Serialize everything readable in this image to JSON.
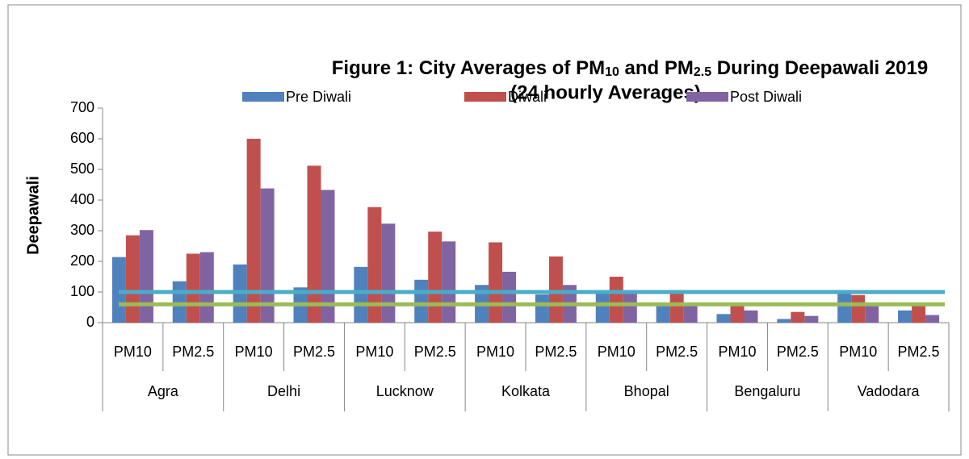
{
  "chart_data": {
    "type": "bar",
    "title_parts": [
      "Figure 1: City Averages of PM",
      "10",
      " and PM",
      "2.5",
      " During Deepawali 2019"
    ],
    "subtitle": "(24 hourly Averages)",
    "ylabel": "Deepawali",
    "categories": [
      "PM10",
      "PM2.5",
      "PM10",
      "PM2.5",
      "PM10",
      "PM2.5",
      "PM10",
      "PM2.5",
      "PM10",
      "PM2.5",
      "PM10",
      "PM2.5",
      "PM10",
      "PM2.5"
    ],
    "groups": [
      "Agra",
      "Delhi",
      "Lucknow",
      "Kolkata",
      "Bhopal",
      "Bengaluru",
      "Vadodara"
    ],
    "series": [
      {
        "name": "Pre Diwali",
        "color": "#4f81bd",
        "values": [
          214,
          135,
          190,
          115,
          182,
          140,
          123,
          92,
          100,
          62,
          28,
          12,
          100,
          40
        ]
      },
      {
        "name": "Diwali",
        "color": "#c0504d",
        "values": [
          285,
          225,
          600,
          512,
          377,
          297,
          262,
          216,
          150,
          97,
          55,
          35,
          90,
          65
        ]
      },
      {
        "name": "Post Diwali",
        "color": "#8064a2",
        "values": [
          302,
          230,
          438,
          433,
          323,
          265,
          166,
          123,
          95,
          57,
          40,
          22,
          55,
          25
        ]
      }
    ],
    "reference_lines": [
      {
        "value": 100,
        "color": "#4bacc6"
      },
      {
        "value": 60,
        "color": "#9bbb59"
      }
    ],
    "ylim": [
      0,
      700
    ],
    "yticks": [
      0,
      100,
      200,
      300,
      400,
      500,
      600,
      700
    ],
    "grid": false
  }
}
